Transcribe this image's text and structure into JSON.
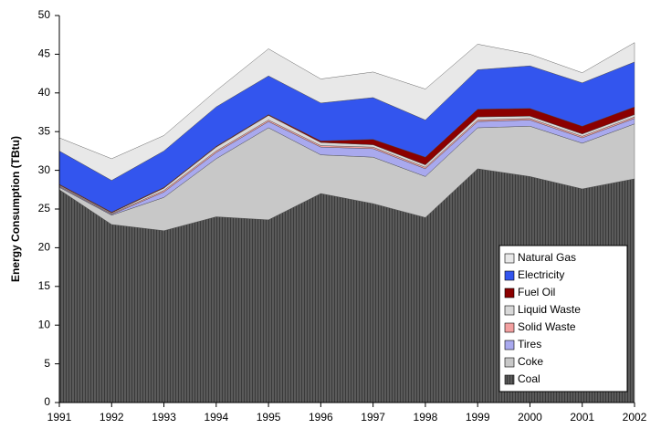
{
  "chart_data": {
    "type": "stacked-area",
    "y_label": "Energy Consumption (TBtu)",
    "categories": [
      "1991",
      "1992",
      "1993",
      "1994",
      "1995",
      "1996",
      "1997",
      "1998",
      "1999",
      "2000",
      "2001",
      "2002"
    ],
    "series": [
      {
        "name": "Coal",
        "color": "#5a5a5a",
        "values": [
          27.5,
          23,
          22.2,
          24,
          23.6,
          27,
          25.7,
          23.9,
          30.2,
          29.2,
          27.6,
          28.9
        ]
      },
      {
        "name": "Coke",
        "color": "#c8c8c8",
        "values": [
          0.3,
          1.2,
          4.3,
          7.5,
          11.9,
          5,
          6,
          5.3,
          5.3,
          6.5,
          5.9,
          7.1
        ]
      },
      {
        "name": "Tires",
        "color": "#a9a9ee",
        "values": [
          0.1,
          0.1,
          0.7,
          0.8,
          0.8,
          1,
          1.1,
          1,
          0.8,
          0.8,
          0.7,
          0.7
        ]
      },
      {
        "name": "Solid Waste",
        "color": "#f2a0a0",
        "values": [
          0.1,
          0.1,
          0.2,
          0.2,
          0.2,
          0.2,
          0.2,
          0.2,
          0.2,
          0.2,
          0.2,
          0.2
        ]
      },
      {
        "name": "Liquid Waste",
        "color": "#d8d8d8",
        "values": [
          0.1,
          0.1,
          0.3,
          0.5,
          0.6,
          0.4,
          0.3,
          0.3,
          0.4,
          0.3,
          0.3,
          0.3
        ]
      },
      {
        "name": "Fuel Oil",
        "color": "#8b0000",
        "values": [
          0.1,
          0.1,
          0.1,
          0.1,
          0.1,
          0.2,
          0.7,
          1,
          1,
          1,
          1,
          1
        ]
      },
      {
        "name": "Electricity",
        "color": "#3355ee",
        "values": [
          4.3,
          4.1,
          4.7,
          5.1,
          5,
          4.9,
          5.4,
          4.8,
          5.1,
          5.5,
          5.6,
          5.8
        ]
      },
      {
        "name": "Natural Gas",
        "color": "#e8e8e8",
        "values": [
          1.7,
          2.8,
          2,
          2.1,
          3.5,
          3.1,
          3.3,
          4,
          3.3,
          1.5,
          1.3,
          2.5
        ]
      }
    ],
    "ylim": [
      0,
      50
    ],
    "yticks": [
      0,
      5,
      10,
      15,
      20,
      25,
      30,
      35,
      40,
      45,
      50
    ],
    "legend": "lower right"
  }
}
